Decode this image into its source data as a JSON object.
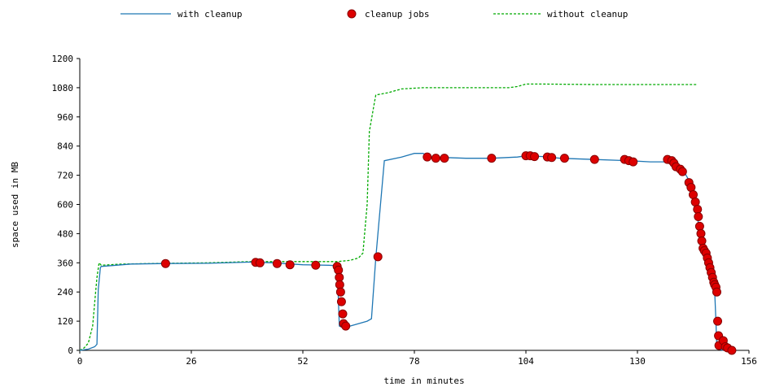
{
  "chart_data": {
    "type": "line",
    "title": "",
    "xlabel": "time in minutes",
    "ylabel": "space used in MB",
    "xlim": [
      0,
      156
    ],
    "ylim": [
      0,
      1200
    ],
    "xticks": [
      0,
      26,
      52,
      78,
      104,
      130,
      156
    ],
    "yticks": [
      0,
      120,
      240,
      360,
      480,
      600,
      720,
      840,
      960,
      1080,
      1200
    ],
    "grid": false,
    "legend_position": "top",
    "series": [
      {
        "name": "with cleanup",
        "style": "solid line",
        "color": "#1f77b4",
        "points": [
          [
            0,
            0
          ],
          [
            2,
            5
          ],
          [
            3.5,
            15
          ],
          [
            4,
            25
          ],
          [
            4.3,
            250
          ],
          [
            4.8,
            340
          ],
          [
            5,
            345
          ],
          [
            12,
            355
          ],
          [
            20,
            357
          ],
          [
            30,
            358
          ],
          [
            40,
            363
          ],
          [
            45,
            360
          ],
          [
            52,
            352
          ],
          [
            58,
            350
          ],
          [
            60,
            348
          ],
          [
            60.5,
            100
          ],
          [
            61.5,
            92
          ],
          [
            63,
            100
          ],
          [
            67,
            120
          ],
          [
            68,
            130
          ],
          [
            69,
            380
          ],
          [
            71,
            780
          ],
          [
            75,
            795
          ],
          [
            78,
            810
          ],
          [
            80,
            810
          ],
          [
            82,
            795
          ],
          [
            90,
            790
          ],
          [
            96,
            790
          ],
          [
            102,
            795
          ],
          [
            104,
            800
          ],
          [
            108,
            797
          ],
          [
            112,
            790
          ],
          [
            120,
            785
          ],
          [
            128,
            780
          ],
          [
            133,
            775
          ],
          [
            136,
            775
          ],
          [
            138,
            775
          ],
          [
            140,
            755
          ],
          [
            141,
            730
          ],
          [
            142,
            700
          ],
          [
            143,
            650
          ],
          [
            144,
            560
          ],
          [
            144.5,
            450
          ],
          [
            145,
            410
          ],
          [
            145.5,
            400
          ],
          [
            146,
            390
          ],
          [
            146.5,
            340
          ],
          [
            147,
            300
          ],
          [
            147.5,
            255
          ],
          [
            148,
            250
          ],
          [
            148.3,
            120
          ],
          [
            148.5,
            10
          ],
          [
            149,
            5
          ],
          [
            150,
            0
          ],
          [
            151,
            0
          ]
        ]
      },
      {
        "name": "cleanup jobs",
        "style": "markers",
        "color": "#dd0000",
        "points": [
          [
            20,
            357
          ],
          [
            41,
            362
          ],
          [
            42,
            360
          ],
          [
            46,
            357
          ],
          [
            49,
            352
          ],
          [
            55,
            350
          ],
          [
            60,
            345
          ],
          [
            60.3,
            330
          ],
          [
            60.5,
            300
          ],
          [
            60.6,
            270
          ],
          [
            60.8,
            240
          ],
          [
            61,
            200
          ],
          [
            61.3,
            150
          ],
          [
            61.5,
            110
          ],
          [
            62,
            100
          ],
          [
            69.5,
            385
          ],
          [
            81,
            795
          ],
          [
            83,
            790
          ],
          [
            85,
            790
          ],
          [
            96,
            790
          ],
          [
            104,
            800
          ],
          [
            105,
            800
          ],
          [
            106,
            797
          ],
          [
            109,
            795
          ],
          [
            110,
            793
          ],
          [
            113,
            790
          ],
          [
            120,
            785
          ],
          [
            127,
            785
          ],
          [
            128,
            780
          ],
          [
            129,
            775
          ],
          [
            137,
            785
          ],
          [
            138,
            780
          ],
          [
            138.5,
            770
          ],
          [
            139,
            755
          ],
          [
            140,
            745
          ],
          [
            140.5,
            735
          ],
          [
            142,
            690
          ],
          [
            142.5,
            670
          ],
          [
            143,
            640
          ],
          [
            143.5,
            610
          ],
          [
            144,
            580
          ],
          [
            144.2,
            550
          ],
          [
            144.5,
            510
          ],
          [
            144.8,
            480
          ],
          [
            145,
            450
          ],
          [
            145.3,
            420
          ],
          [
            145.6,
            410
          ],
          [
            146,
            400
          ],
          [
            146.3,
            380
          ],
          [
            146.6,
            360
          ],
          [
            146.9,
            340
          ],
          [
            147.2,
            320
          ],
          [
            147.5,
            300
          ],
          [
            147.8,
            280
          ],
          [
            148,
            270
          ],
          [
            148.3,
            260
          ],
          [
            148.5,
            240
          ],
          [
            148.7,
            120
          ],
          [
            148.9,
            60
          ],
          [
            149,
            20
          ],
          [
            150,
            40
          ],
          [
            150.5,
            15
          ],
          [
            151,
            10
          ],
          [
            152,
            0
          ]
        ]
      },
      {
        "name": "without cleanup",
        "style": "dashed line",
        "color": "#00aa00",
        "points": [
          [
            0,
            0
          ],
          [
            1,
            10
          ],
          [
            2,
            30
          ],
          [
            3,
            100
          ],
          [
            3.5,
            200
          ],
          [
            4,
            300
          ],
          [
            4.5,
            360
          ],
          [
            5,
            350
          ],
          [
            10,
            355
          ],
          [
            20,
            358
          ],
          [
            30,
            360
          ],
          [
            40,
            365
          ],
          [
            50,
            365
          ],
          [
            60,
            365
          ],
          [
            63,
            370
          ],
          [
            65,
            380
          ],
          [
            66,
            400
          ],
          [
            67,
            600
          ],
          [
            67.5,
            900
          ],
          [
            68.5,
            1000
          ],
          [
            69,
            1050
          ],
          [
            72,
            1060
          ],
          [
            75,
            1075
          ],
          [
            80,
            1080
          ],
          [
            90,
            1080
          ],
          [
            100,
            1080
          ],
          [
            102,
            1085
          ],
          [
            104,
            1095
          ],
          [
            108,
            1095
          ],
          [
            120,
            1093
          ],
          [
            130,
            1093
          ],
          [
            140,
            1093
          ],
          [
            144,
            1093
          ]
        ]
      }
    ]
  }
}
